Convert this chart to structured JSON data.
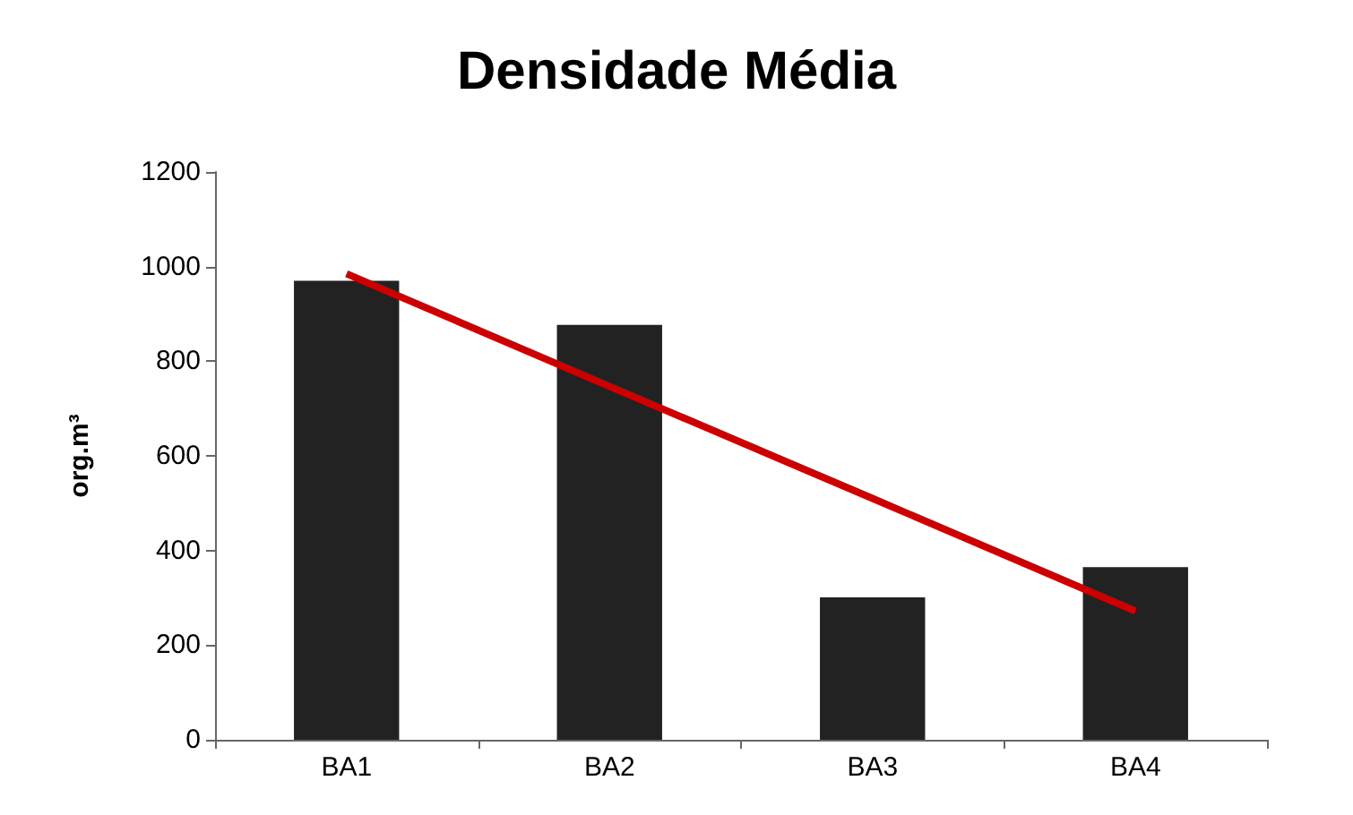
{
  "chart_data": {
    "type": "bar",
    "title": "Densidade Média",
    "ylabel": "org.m³",
    "categories": [
      "BA1",
      "BA2",
      "BA3",
      "BA4"
    ],
    "series": [
      {
        "color": "#222222",
        "values": [
          970,
          877,
          301,
          365
        ]
      },
      {
        "type": "line",
        "color": "#cc0000",
        "values": [
          985,
          747,
          510,
          272
        ],
        "marker": "none"
      }
    ],
    "ylim": [
      0,
      1200
    ],
    "yticks": [
      0,
      200,
      400,
      600,
      800,
      1000,
      1200
    ],
    "grid": false
  }
}
